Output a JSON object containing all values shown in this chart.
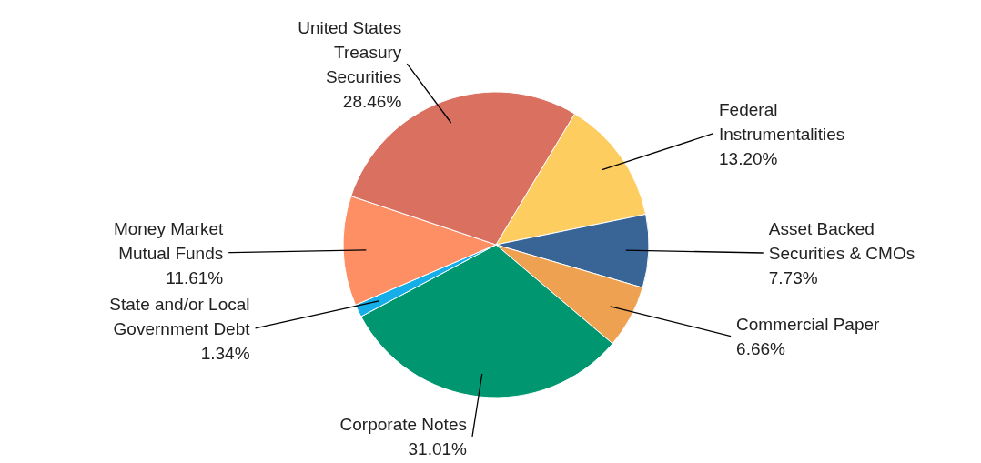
{
  "chart_data": {
    "type": "pie",
    "categories": [
      "Federal Instrumentalities",
      "Asset Backed Securities & CMOs",
      "Commercial Paper",
      "Corporate Notes",
      "State and/or Local Government Debt",
      "Money Market Mutual Funds",
      "United States Treasury Securities"
    ],
    "values": [
      13.2,
      7.73,
      6.66,
      31.01,
      1.34,
      11.61,
      28.46
    ],
    "value_labels": [
      "13.20%",
      "7.73%",
      "6.66%",
      "31.01%",
      "1.34%",
      "11.61%",
      "28.46%"
    ],
    "colors": [
      "#fdcd60",
      "#386496",
      "#eea150",
      "#009670",
      "#16aee8",
      "#fe8f64",
      "#d97060"
    ]
  }
}
